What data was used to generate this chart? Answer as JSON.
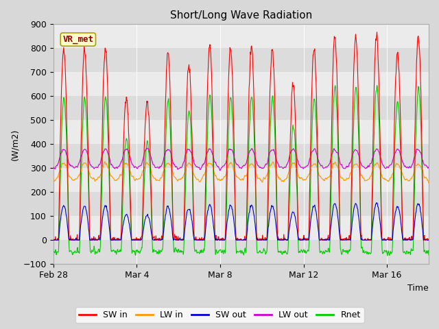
{
  "title": "Short/Long Wave Radiation",
  "xlabel": "Time",
  "ylabel": "(W/m2)",
  "ylim": [
    -100,
    900
  ],
  "yticks": [
    -100,
    0,
    100,
    200,
    300,
    400,
    500,
    600,
    700,
    800,
    900
  ],
  "fig_bg_color": "#d8d8d8",
  "plot_bg_color": "#e8e8e8",
  "band_colors": [
    "#dcdcdc",
    "#ebebeb"
  ],
  "line_colors": {
    "SW_in": "#ff0000",
    "LW_in": "#ff9900",
    "SW_out": "#0000cc",
    "LW_out": "#cc00cc",
    "Rnet": "#00cc00"
  },
  "legend_labels": [
    "SW in",
    "LW in",
    "SW out",
    "LW out",
    "Rnet"
  ],
  "station_label": "VR_met",
  "num_days": 18,
  "dt_minutes": 30,
  "xtick_labels": [
    "Feb 28",
    "Mar 4",
    "Mar 8",
    "Mar 12",
    "Mar 16"
  ],
  "xtick_days": [
    0,
    4,
    8,
    12,
    16
  ],
  "sw_peaks": [
    800,
    790,
    800,
    600,
    580,
    780,
    730,
    810,
    800,
    810,
    800,
    650,
    800,
    850,
    850,
    860,
    790,
    850
  ],
  "lw_in_base": 270,
  "lw_out_base": 320
}
